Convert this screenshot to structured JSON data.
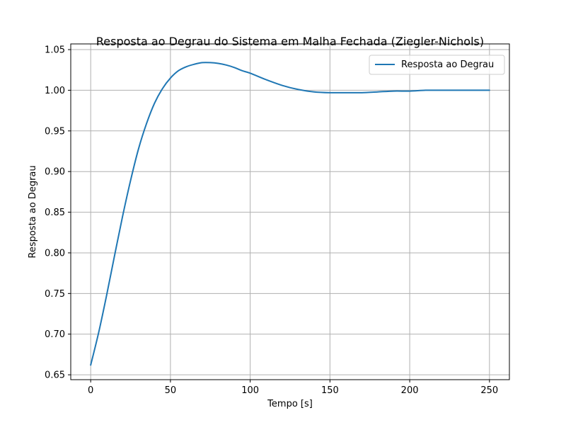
{
  "chart_data": {
    "type": "line",
    "title": "Resposta ao Degrau do Sistema em Malha Fechada (Ziegler-Nichols)",
    "xlabel": "Tempo [s]",
    "ylabel": "Resposta ao Degrau",
    "xlim": [
      -12.5,
      262.5
    ],
    "ylim": [
      0.644,
      1.057
    ],
    "xticks": [
      0,
      50,
      100,
      150,
      200,
      250
    ],
    "yticks": [
      0.65,
      0.7,
      0.75,
      0.8,
      0.85,
      0.9,
      0.95,
      1.0,
      1.05
    ],
    "xtick_labels": [
      "0",
      "50",
      "100",
      "150",
      "200",
      "250"
    ],
    "ytick_labels": [
      "0.65",
      "0.70",
      "0.75",
      "0.80",
      "0.85",
      "0.90",
      "0.95",
      "1.00",
      "1.05"
    ],
    "grid": true,
    "legend_position": "top-right",
    "series": [
      {
        "name": "Resposta ao Degrau",
        "color": "#1f77b4",
        "x": [
          0,
          5,
          10,
          15,
          20,
          25,
          30,
          35,
          40,
          45,
          50,
          55,
          60,
          65,
          70,
          75,
          80,
          85,
          90,
          95,
          100,
          110,
          120,
          130,
          140,
          150,
          160,
          170,
          180,
          190,
          200,
          210,
          220,
          230,
          240,
          250
        ],
        "y": [
          0.662,
          0.702,
          0.748,
          0.797,
          0.845,
          0.889,
          0.928,
          0.959,
          0.984,
          1.002,
          1.015,
          1.024,
          1.029,
          1.032,
          1.034,
          1.034,
          1.033,
          1.031,
          1.028,
          1.024,
          1.021,
          1.013,
          1.006,
          1.001,
          0.998,
          0.997,
          0.997,
          0.997,
          0.998,
          0.999,
          0.999,
          1.0,
          1.0,
          1.0,
          1.0,
          1.0
        ]
      }
    ]
  }
}
